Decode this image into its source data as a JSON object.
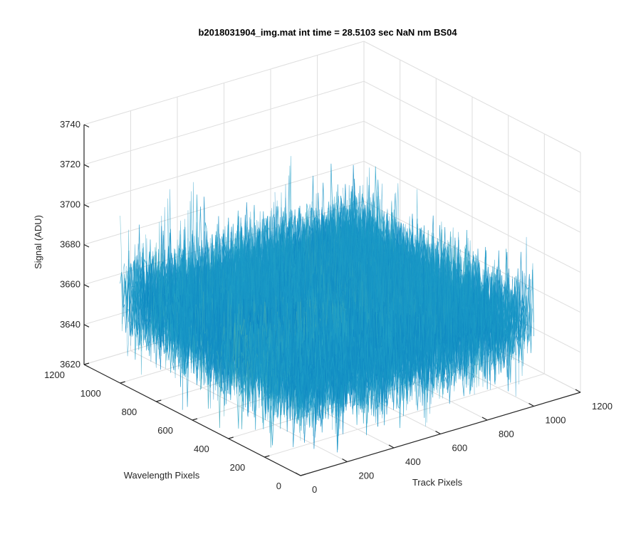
{
  "chart_data": {
    "type": "surface",
    "title": "b2018031904_img.mat int time = 28.5103 sec  NaN nm BS04",
    "xlabel": "Track Pixels",
    "ylabel": "Wavelength Pixels",
    "zlabel": "Signal (ADU)",
    "xlim": [
      0,
      1200
    ],
    "ylim": [
      0,
      1200
    ],
    "zlim": [
      3620,
      3740
    ],
    "x_ticks": [
      "0",
      "200",
      "400",
      "600",
      "800",
      "1000",
      "1200"
    ],
    "y_ticks": [
      "0",
      "200",
      "400",
      "600",
      "800",
      "1000",
      "1200"
    ],
    "z_ticks": [
      "3620",
      "3640",
      "3660",
      "3680",
      "3700",
      "3720",
      "3740"
    ],
    "surface_extent": {
      "x": [
        0,
        1000
      ],
      "y": [
        0,
        1000
      ]
    },
    "surface_mean": 3662,
    "surface_noise_range": [
      3630,
      3710
    ],
    "grid": true,
    "colors": {
      "low": "#0072bd",
      "mid": "#1fa0c8",
      "high": "#b5c96b",
      "axis": "#262626",
      "grid": "#dedede"
    }
  }
}
